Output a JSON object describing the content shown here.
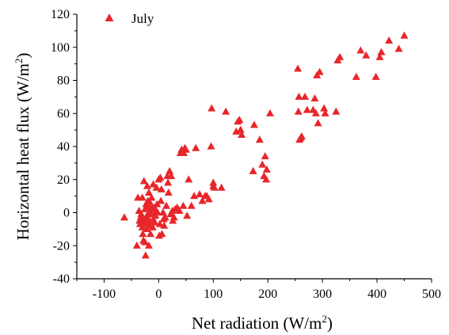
{
  "chart_data": {
    "type": "scatter",
    "xlabel": "Net radiation (W/m",
    "xlabel_sup": "2",
    "xlabel_end": ")",
    "ylabel": "Horizontal heat flux (W/m",
    "ylabel_sup": "2",
    "ylabel_end": ")",
    "xlim": [
      -150,
      500
    ],
    "ylim": [
      -40,
      120
    ],
    "xticks": [
      -100,
      0,
      100,
      200,
      300,
      400,
      500
    ],
    "yticks": [
      -40,
      -20,
      0,
      20,
      40,
      60,
      80,
      100,
      120
    ],
    "grid": false,
    "legend_position": "top-left",
    "marker": "triangle",
    "color": "#e8262a",
    "series": [
      {
        "name": "July",
        "points": [
          [
            -63,
            -3
          ],
          [
            -40,
            -20
          ],
          [
            -38,
            9
          ],
          [
            -36,
            1
          ],
          [
            -35,
            -5
          ],
          [
            -34,
            -7
          ],
          [
            -33,
            -3
          ],
          [
            -32,
            -1
          ],
          [
            -30,
            9
          ],
          [
            -30,
            -9
          ],
          [
            -29,
            -13
          ],
          [
            -28,
            -17
          ],
          [
            -27,
            19
          ],
          [
            -27,
            -4
          ],
          [
            -26,
            -6
          ],
          [
            -25,
            2
          ],
          [
            -25,
            -18
          ],
          [
            -24,
            -26
          ],
          [
            -24,
            -7
          ],
          [
            -23,
            5
          ],
          [
            -22,
            -3
          ],
          [
            -22,
            -10
          ],
          [
            -21,
            16
          ],
          [
            -20,
            7
          ],
          [
            -20,
            -1
          ],
          [
            -19,
            3
          ],
          [
            -19,
            -8
          ],
          [
            -18,
            12
          ],
          [
            -18,
            -20
          ],
          [
            -17,
            -5
          ],
          [
            -16,
            6
          ],
          [
            -16,
            0
          ],
          [
            -15,
            -13
          ],
          [
            -14,
            -7
          ],
          [
            -13,
            9
          ],
          [
            -13,
            3
          ],
          [
            -12,
            2
          ],
          [
            -11,
            -9
          ],
          [
            -10,
            17
          ],
          [
            -10,
            -4
          ],
          [
            -9,
            -1
          ],
          [
            -8,
            3
          ],
          [
            -7,
            -6
          ],
          [
            -6,
            -2
          ],
          [
            -5,
            1
          ],
          [
            -4,
            15
          ],
          [
            -3,
            5
          ],
          [
            -2,
            0
          ],
          [
            0,
            20
          ],
          [
            1,
            -14
          ],
          [
            2,
            -7
          ],
          [
            3,
            21
          ],
          [
            4,
            7
          ],
          [
            5,
            14
          ],
          [
            6,
            -13
          ],
          [
            8,
            0
          ],
          [
            9,
            -4
          ],
          [
            10,
            -8
          ],
          [
            12,
            -3
          ],
          [
            14,
            4
          ],
          [
            16,
            22
          ],
          [
            17,
            18
          ],
          [
            18,
            12
          ],
          [
            20,
            25
          ],
          [
            22,
            -1
          ],
          [
            23,
            22
          ],
          [
            25,
            1
          ],
          [
            26,
            -5
          ],
          [
            28,
            -3
          ],
          [
            30,
            2
          ],
          [
            34,
            3
          ],
          [
            38,
            1
          ],
          [
            40,
            36
          ],
          [
            42,
            38
          ],
          [
            45,
            4
          ],
          [
            46,
            36
          ],
          [
            48,
            39
          ],
          [
            50,
            38
          ],
          [
            52,
            -2
          ],
          [
            55,
            20
          ],
          [
            60,
            4
          ],
          [
            65,
            10
          ],
          [
            68,
            39
          ],
          [
            75,
            11
          ],
          [
            80,
            7
          ],
          [
            85,
            10
          ],
          [
            88,
            10
          ],
          [
            92,
            8
          ],
          [
            96,
            40
          ],
          [
            97,
            63
          ],
          [
            100,
            16
          ],
          [
            100,
            18
          ],
          [
            102,
            15
          ],
          [
            115,
            15
          ],
          [
            123,
            61
          ],
          [
            142,
            49
          ],
          [
            145,
            55
          ],
          [
            148,
            56
          ],
          [
            150,
            50
          ],
          [
            152,
            47
          ],
          [
            173,
            25
          ],
          [
            175,
            53
          ],
          [
            185,
            44
          ],
          [
            190,
            29
          ],
          [
            193,
            22
          ],
          [
            195,
            34
          ],
          [
            197,
            20
          ],
          [
            198,
            26
          ],
          [
            204,
            60
          ],
          [
            255,
            87
          ],
          [
            256,
            61
          ],
          [
            257,
            70
          ],
          [
            258,
            44
          ],
          [
            260,
            45
          ],
          [
            262,
            46
          ],
          [
            268,
            70
          ],
          [
            272,
            62
          ],
          [
            283,
            62
          ],
          [
            286,
            69
          ],
          [
            288,
            60
          ],
          [
            290,
            83
          ],
          [
            292,
            54
          ],
          [
            295,
            85
          ],
          [
            303,
            63
          ],
          [
            305,
            60
          ],
          [
            325,
            61
          ],
          [
            328,
            92
          ],
          [
            332,
            94
          ],
          [
            362,
            82
          ],
          [
            370,
            98
          ],
          [
            380,
            95
          ],
          [
            398,
            82
          ],
          [
            405,
            94
          ],
          [
            408,
            97
          ],
          [
            422,
            104
          ],
          [
            440,
            99
          ],
          [
            450,
            107
          ]
        ]
      }
    ]
  }
}
